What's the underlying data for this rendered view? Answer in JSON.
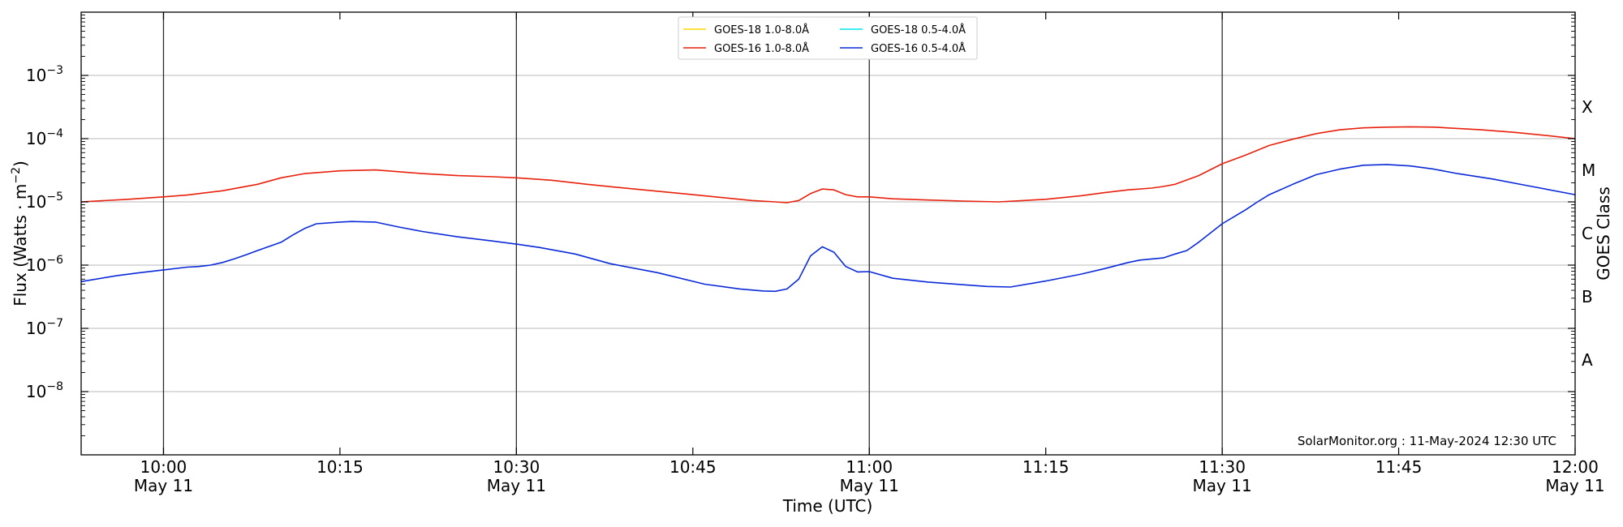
{
  "chart_data": {
    "type": "line",
    "y_scale": "log",
    "ylabel_main": "Flux (Watts · m",
    "ylabel_sup": "−2",
    "ylabel_close": ")",
    "y2label": "GOES Class",
    "xlabel": "Time (UTC)",
    "credit": "SolarMonitor.org : 11-May-2024 12:30 UTC",
    "x_range": [
      "09:53",
      "12:00"
    ],
    "y_range": [
      1e-09,
      0.01
    ],
    "grid": "horizontal",
    "legend_position": "top-center",
    "y_ticks": [
      {
        "value": 1e-08,
        "base": "10",
        "exp": "−8"
      },
      {
        "value": 1e-07,
        "base": "10",
        "exp": "−7"
      },
      {
        "value": 1e-06,
        "base": "10",
        "exp": "−6"
      },
      {
        "value": 1e-05,
        "base": "10",
        "exp": "−5"
      },
      {
        "value": 0.0001,
        "base": "10",
        "exp": "−4"
      },
      {
        "value": 0.001,
        "base": "10",
        "exp": "−3"
      }
    ],
    "goes_classes": [
      {
        "label": "A",
        "value": 3.16e-08
      },
      {
        "label": "B",
        "value": 3.16e-07
      },
      {
        "label": "C",
        "value": 3.16e-06
      },
      {
        "label": "M",
        "value": 3.16e-05
      },
      {
        "label": "X",
        "value": 0.000316
      }
    ],
    "x_ticks": [
      {
        "time": "10:00",
        "label": "10:00",
        "sublabel": "May 11"
      },
      {
        "time": "10:15",
        "label": "10:15",
        "sublabel": ""
      },
      {
        "time": "10:30",
        "label": "10:30",
        "sublabel": "May 11"
      },
      {
        "time": "10:45",
        "label": "10:45",
        "sublabel": ""
      },
      {
        "time": "11:00",
        "label": "11:00",
        "sublabel": "May 11"
      },
      {
        "time": "11:15",
        "label": "11:15",
        "sublabel": ""
      },
      {
        "time": "11:30",
        "label": "11:30",
        "sublabel": "May 11"
      },
      {
        "time": "11:45",
        "label": "11:45",
        "sublabel": ""
      },
      {
        "time": "12:00",
        "label": "12:00",
        "sublabel": "May 11"
      }
    ],
    "vlines": [
      "10:00",
      "10:30",
      "11:00",
      "11:30"
    ],
    "series": [
      {
        "name": "GOES-18 1.0-8.0Å",
        "color": "#ffd700",
        "x": [],
        "values": []
      },
      {
        "name": "GOES-16 1.0-8.0Å",
        "color": "#e8200c",
        "x": [
          "09:53",
          "09:57",
          "10:00",
          "10:02",
          "10:05",
          "10:08",
          "10:10",
          "10:12",
          "10:15",
          "10:18",
          "10:20",
          "10:22",
          "10:25",
          "10:28",
          "10:30",
          "10:33",
          "10:36",
          "10:40",
          "10:45",
          "10:50",
          "10:52",
          "10:53",
          "10:54",
          "10:55",
          "10:56",
          "10:57",
          "10:58",
          "10:59",
          "11:00",
          "11:02",
          "11:05",
          "11:08",
          "11:11",
          "11:15",
          "11:18",
          "11:20",
          "11:22",
          "11:24",
          "11:25",
          "11:26",
          "11:28",
          "11:30",
          "11:32",
          "11:34",
          "11:36",
          "11:38",
          "11:40",
          "11:42",
          "11:44",
          "11:46",
          "11:48",
          "11:50",
          "11:52",
          "11:55",
          "11:58",
          "12:00"
        ],
        "values": [
          1e-05,
          1.1e-05,
          1.2e-05,
          1.28e-05,
          1.5e-05,
          1.9e-05,
          2.4e-05,
          2.8e-05,
          3.1e-05,
          3.2e-05,
          3e-05,
          2.8e-05,
          2.6e-05,
          2.5e-05,
          2.4e-05,
          2.2e-05,
          1.9e-05,
          1.6e-05,
          1.3e-05,
          1.05e-05,
          1e-05,
          9.7e-06,
          1.05e-05,
          1.35e-05,
          1.6e-05,
          1.55e-05,
          1.3e-05,
          1.2e-05,
          1.2e-05,
          1.12e-05,
          1.07e-05,
          1.03e-05,
          1e-05,
          1.1e-05,
          1.25e-05,
          1.4e-05,
          1.55e-05,
          1.65e-05,
          1.75e-05,
          1.9e-05,
          2.6e-05,
          4e-05,
          5.5e-05,
          7.8e-05,
          9.8e-05,
          0.00012,
          0.000138,
          0.000148,
          0.000152,
          0.000154,
          0.000152,
          0.000145,
          0.000138,
          0.000125,
          0.00011,
          0.0001
        ]
      },
      {
        "name": "GOES-18 0.5-4.0Å",
        "color": "#00e5ee",
        "x": [],
        "values": []
      },
      {
        "name": "GOES-16 0.5-4.0Å",
        "color": "#0a2ad9",
        "x": [
          "09:53",
          "09:56",
          "09:58",
          "10:00",
          "10:02",
          "10:03",
          "10:04",
          "10:05",
          "10:06",
          "10:07",
          "10:08",
          "10:10",
          "10:11",
          "10:12",
          "10:13",
          "10:15",
          "10:16",
          "10:18",
          "10:20",
          "10:22",
          "10:25",
          "10:28",
          "10:30",
          "10:32",
          "10:35",
          "10:38",
          "10:42",
          "10:46",
          "10:49",
          "10:51",
          "10:52",
          "10:53",
          "10:54",
          "10:55",
          "10:56",
          "10:57",
          "10:58",
          "10:59",
          "11:00",
          "11:02",
          "11:05",
          "11:08",
          "11:10",
          "11:12",
          "11:15",
          "11:18",
          "11:20",
          "11:22",
          "11:23",
          "11:25",
          "11:26",
          "11:27",
          "11:28",
          "11:30",
          "11:32",
          "11:33",
          "11:34",
          "11:36",
          "11:38",
          "11:40",
          "11:42",
          "11:44",
          "11:46",
          "11:48",
          "11:50",
          "11:53",
          "11:56",
          "12:00"
        ],
        "values": [
          5.5e-07,
          6.8e-07,
          7.6e-07,
          8.4e-07,
          9.3e-07,
          9.5e-07,
          1e-06,
          1.1e-06,
          1.25e-06,
          1.45e-06,
          1.7e-06,
          2.3e-06,
          3e-06,
          3.8e-06,
          4.5e-06,
          4.8e-06,
          4.9e-06,
          4.8e-06,
          4e-06,
          3.4e-06,
          2.8e-06,
          2.4e-06,
          2.15e-06,
          1.9e-06,
          1.5e-06,
          1.05e-06,
          7.6e-07,
          5e-07,
          4.2e-07,
          3.9e-07,
          3.85e-07,
          4.2e-07,
          6e-07,
          1.4e-06,
          1.95e-06,
          1.6e-06,
          9.5e-07,
          7.8e-07,
          7.9e-07,
          6.2e-07,
          5.4e-07,
          4.9e-07,
          4.6e-07,
          4.5e-07,
          5.6e-07,
          7.2e-07,
          8.8e-07,
          1.1e-06,
          1.2e-06,
          1.3e-06,
          1.5e-06,
          1.7e-06,
          2.3e-06,
          4.5e-06,
          7.5e-06,
          1e-05,
          1.3e-05,
          1.9e-05,
          2.7e-05,
          3.3e-05,
          3.8e-05,
          3.9e-05,
          3.7e-05,
          3.3e-05,
          2.8e-05,
          2.3e-05,
          1.8e-05,
          1.3e-05
        ]
      }
    ]
  }
}
